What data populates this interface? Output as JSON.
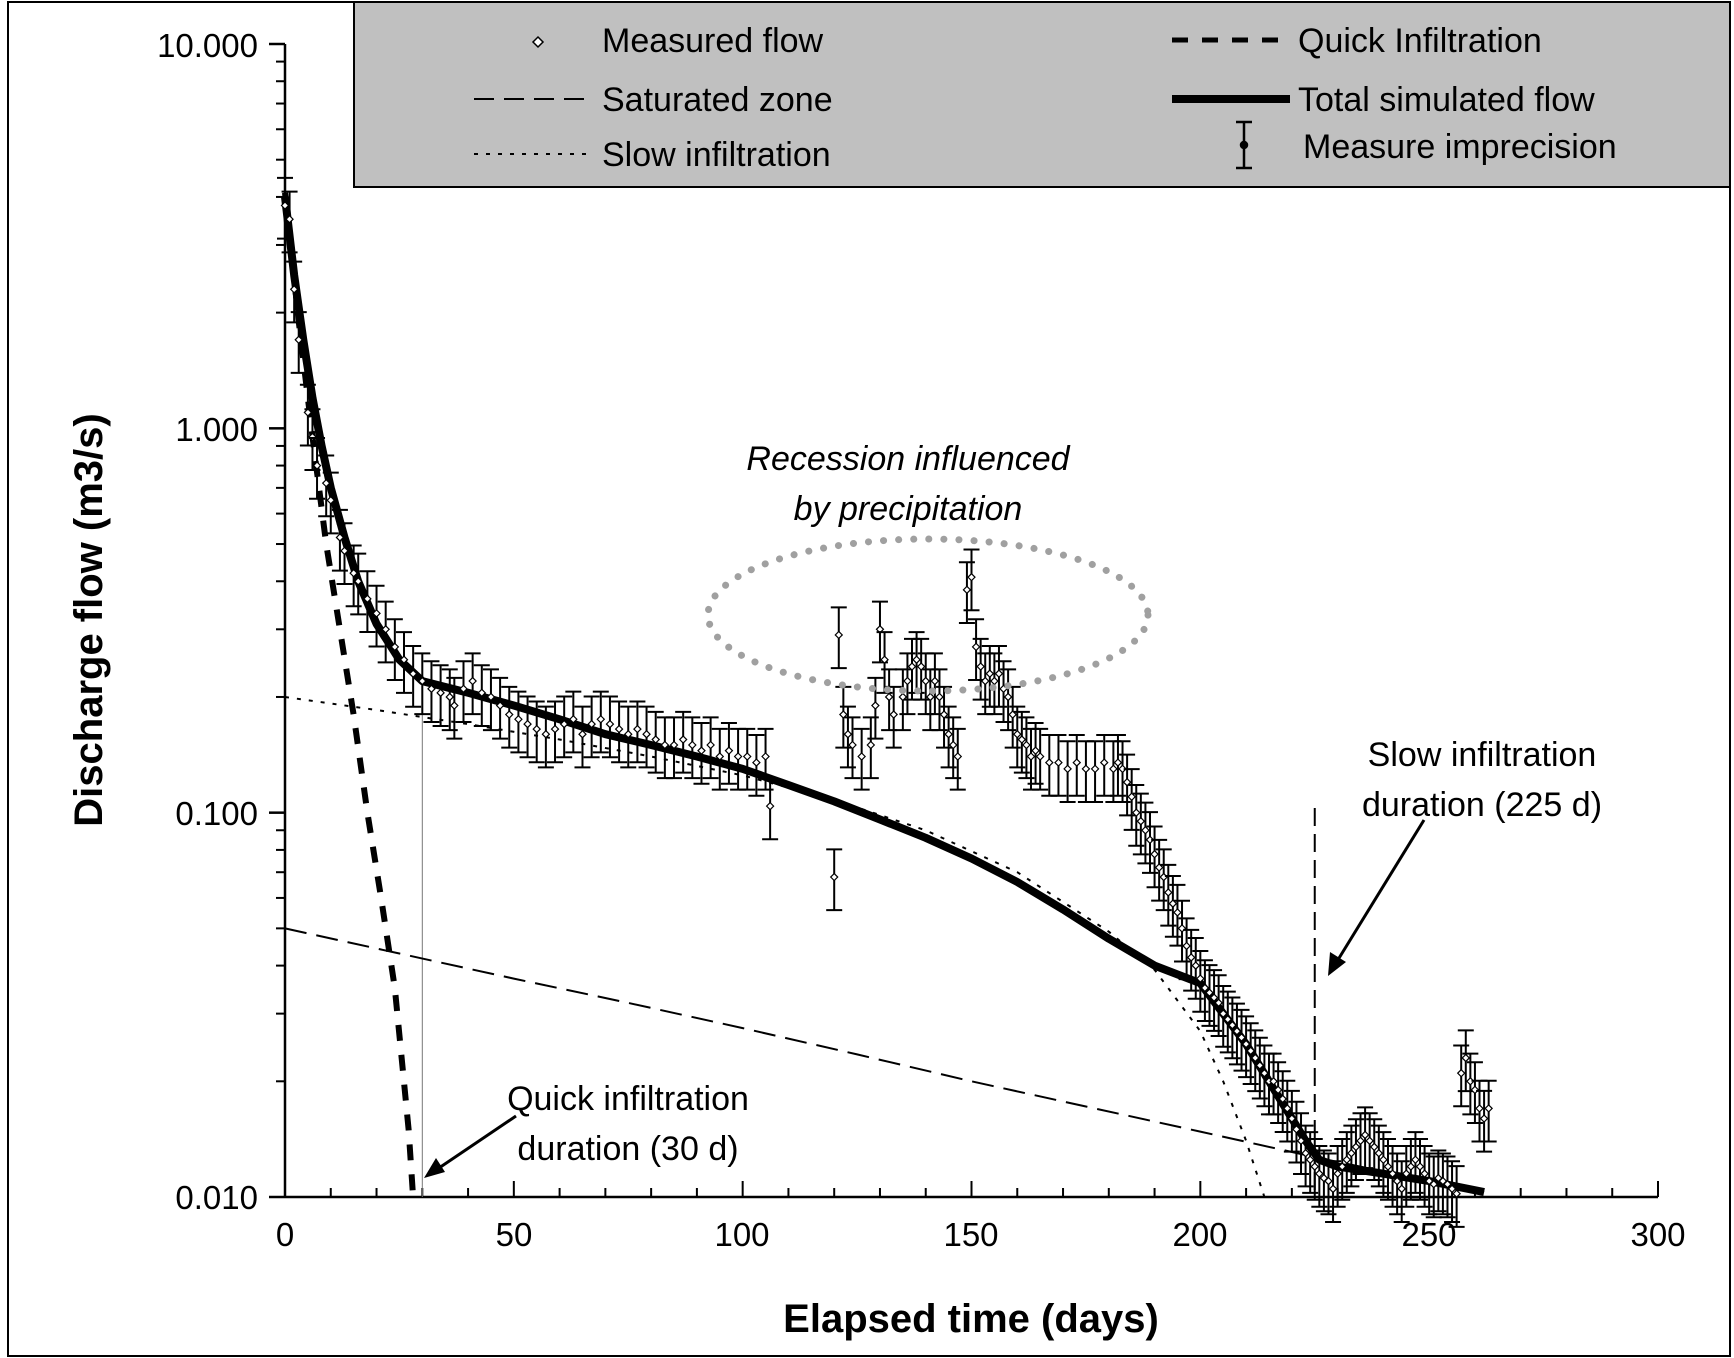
{
  "chart_data": {
    "type": "scatter",
    "xlabel": "Elapsed time (days)",
    "ylabel": "Discharge flow (m3/s)",
    "xlim": [
      0,
      300
    ],
    "ylim": [
      0.01,
      10
    ],
    "y_scale": "log",
    "x_ticks": [
      "0",
      "50",
      "100",
      "150",
      "200",
      "250",
      "300"
    ],
    "y_ticks": [
      "0.010",
      "0.100",
      "1.000",
      "10.000"
    ],
    "y_tick_values": [
      0.01,
      0.1,
      1,
      10
    ],
    "grid": false,
    "legend": {
      "position": "top",
      "background": "#c0c0c0",
      "entries": [
        "Measured flow",
        "Quick Infiltration",
        "Saturated zone",
        "Total simulated flow",
        "Slow infiltration",
        "Measure imprecision"
      ]
    },
    "series": [
      {
        "name": "Measured flow",
        "style": "points-with-error-bars",
        "error_fraction": 0.18,
        "x": [
          0,
          1,
          2,
          3,
          5,
          6,
          7,
          9,
          10,
          12,
          13,
          15,
          16,
          18,
          20,
          22,
          24,
          26,
          28,
          30,
          32,
          34,
          36,
          37,
          39,
          41,
          43,
          45,
          47,
          49,
          51,
          53,
          55,
          57,
          59,
          61,
          63,
          65,
          67,
          69,
          71,
          73,
          75,
          77,
          79,
          81,
          83,
          85,
          87,
          89,
          91,
          93,
          95,
          97,
          99,
          101,
          103,
          105,
          106,
          121,
          122,
          123,
          124,
          126,
          128,
          129,
          130,
          131,
          132,
          133,
          135,
          136,
          137,
          138,
          139,
          140,
          141,
          142,
          143,
          144,
          145,
          146,
          147,
          149,
          150,
          151,
          152,
          153,
          154,
          155,
          156,
          157,
          158,
          159,
          160,
          161,
          162,
          163,
          164,
          165,
          167,
          169,
          171,
          173,
          175,
          177,
          179,
          181,
          182,
          183,
          184,
          185,
          186,
          187,
          188,
          189,
          190,
          191,
          192,
          193,
          194,
          195,
          196,
          197,
          198,
          199,
          200,
          201,
          202,
          203,
          204,
          205,
          206,
          207,
          208,
          209,
          210,
          211,
          212,
          213,
          214,
          215,
          216,
          217,
          218,
          219,
          220,
          221,
          222,
          223,
          224,
          225,
          226,
          227,
          228,
          229,
          230,
          231,
          232,
          233,
          234,
          235,
          236,
          237,
          238,
          239,
          240,
          241,
          242,
          243,
          244,
          245,
          246,
          247,
          248,
          249,
          250,
          251,
          252,
          253,
          254,
          255,
          256,
          257,
          258,
          259,
          260,
          261,
          262,
          263,
          120
        ],
        "y": [
          3.8,
          3.5,
          2.3,
          1.7,
          1.1,
          0.95,
          0.8,
          0.72,
          0.65,
          0.52,
          0.48,
          0.42,
          0.4,
          0.36,
          0.33,
          0.3,
          0.27,
          0.25,
          0.23,
          0.22,
          0.21,
          0.205,
          0.2,
          0.19,
          0.21,
          0.22,
          0.205,
          0.2,
          0.19,
          0.18,
          0.175,
          0.17,
          0.165,
          0.16,
          0.165,
          0.17,
          0.175,
          0.16,
          0.17,
          0.175,
          0.17,
          0.165,
          0.16,
          0.165,
          0.16,
          0.155,
          0.15,
          0.15,
          0.155,
          0.15,
          0.145,
          0.15,
          0.14,
          0.145,
          0.14,
          0.14,
          0.135,
          0.14,
          0.104,
          0.29,
          0.18,
          0.16,
          0.15,
          0.14,
          0.15,
          0.19,
          0.3,
          0.25,
          0.2,
          0.18,
          0.2,
          0.22,
          0.24,
          0.25,
          0.24,
          0.22,
          0.2,
          0.22,
          0.2,
          0.18,
          0.16,
          0.15,
          0.14,
          0.38,
          0.41,
          0.27,
          0.24,
          0.22,
          0.23,
          0.22,
          0.23,
          0.21,
          0.2,
          0.18,
          0.16,
          0.155,
          0.15,
          0.14,
          0.145,
          0.14,
          0.135,
          0.135,
          0.13,
          0.135,
          0.13,
          0.13,
          0.135,
          0.13,
          0.135,
          0.13,
          0.12,
          0.11,
          0.1,
          0.095,
          0.09,
          0.085,
          0.078,
          0.072,
          0.068,
          0.062,
          0.058,
          0.055,
          0.05,
          0.045,
          0.042,
          0.04,
          0.037,
          0.035,
          0.034,
          0.033,
          0.032,
          0.03,
          0.029,
          0.028,
          0.027,
          0.026,
          0.025,
          0.024,
          0.023,
          0.022,
          0.021,
          0.02,
          0.02,
          0.019,
          0.018,
          0.017,
          0.016,
          0.015,
          0.014,
          0.013,
          0.0125,
          0.012,
          0.0115,
          0.0112,
          0.011,
          0.0105,
          0.0115,
          0.012,
          0.0125,
          0.013,
          0.0135,
          0.014,
          0.0145,
          0.014,
          0.0135,
          0.013,
          0.0125,
          0.012,
          0.0115,
          0.011,
          0.0105,
          0.0115,
          0.012,
          0.0125,
          0.012,
          0.0115,
          0.011,
          0.0108,
          0.0112,
          0.011,
          0.0108,
          0.0105,
          0.0102,
          0.021,
          0.023,
          0.02,
          0.019,
          0.017,
          0.016,
          0.017,
          0.068
        ]
      },
      {
        "name": "Quick Infiltration",
        "style": "heavy-dashed-line",
        "x": [
          0,
          3,
          6,
          9,
          12,
          15,
          18,
          21,
          24,
          27,
          28
        ],
        "y": [
          4.1,
          1.9,
          0.95,
          0.5,
          0.3,
          0.18,
          0.1,
          0.06,
          0.035,
          0.015,
          0.01
        ]
      },
      {
        "name": "Saturated zone",
        "style": "long-dashed-line",
        "x": [
          0,
          25,
          50,
          75,
          100,
          125,
          150,
          175,
          200,
          225,
          250,
          262
        ],
        "y": [
          0.05,
          0.043,
          0.037,
          0.032,
          0.0275,
          0.0235,
          0.02,
          0.0172,
          0.0148,
          0.0127,
          0.011,
          0.0103
        ]
      },
      {
        "name": "Slow infiltration",
        "style": "dotted-line",
        "x": [
          0,
          20,
          40,
          60,
          80,
          100,
          120,
          140,
          160,
          180,
          190,
          200,
          205,
          210,
          214
        ],
        "y": [
          0.2,
          0.185,
          0.17,
          0.155,
          0.14,
          0.125,
          0.108,
          0.09,
          0.07,
          0.049,
          0.039,
          0.027,
          0.02,
          0.014,
          0.01
        ]
      },
      {
        "name": "Total simulated flow",
        "style": "heavy-solid-line",
        "x": [
          0,
          2,
          4,
          6,
          8,
          10,
          13,
          16,
          20,
          25,
          30,
          40,
          50,
          60,
          70,
          80,
          90,
          100,
          110,
          120,
          130,
          140,
          150,
          160,
          170,
          180,
          190,
          200,
          205,
          210,
          215,
          220,
          223,
          226,
          230,
          240,
          250,
          262
        ],
        "y": [
          4.0,
          2.5,
          1.7,
          1.2,
          0.9,
          0.7,
          0.52,
          0.4,
          0.31,
          0.25,
          0.22,
          0.205,
          0.19,
          0.175,
          0.16,
          0.15,
          0.14,
          0.13,
          0.118,
          0.107,
          0.096,
          0.086,
          0.076,
          0.066,
          0.056,
          0.047,
          0.04,
          0.036,
          0.03,
          0.025,
          0.02,
          0.016,
          0.014,
          0.0125,
          0.012,
          0.0115,
          0.011,
          0.0103
        ]
      }
    ],
    "annotations": [
      {
        "text_lines": [
          "Recession influenced",
          "by precipitation"
        ],
        "style": "italic",
        "shape": "dotted-ellipse",
        "center": [
          140,
          0.3
        ]
      },
      {
        "text_lines": [
          "Slow infiltration",
          "duration (225 d)"
        ],
        "marker_x": 225,
        "shape": "vertical-dashed-line"
      },
      {
        "text_lines": [
          "Quick infiltration",
          "duration (30 d)"
        ],
        "marker_x": 30,
        "shape": "vertical-thin-line"
      }
    ]
  }
}
